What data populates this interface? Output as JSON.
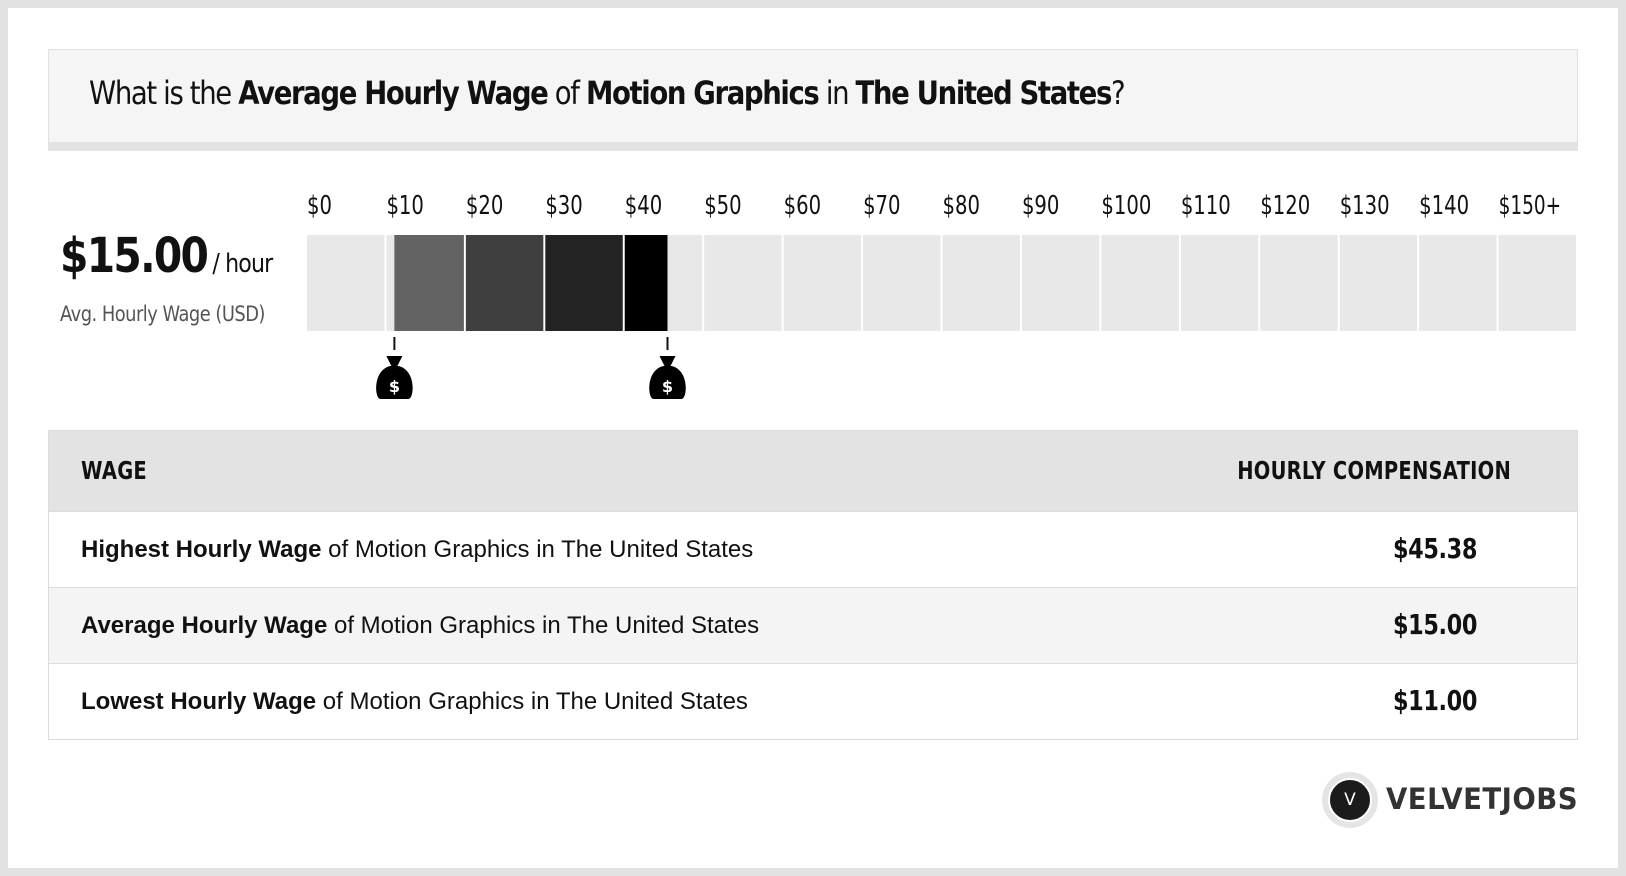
{
  "title": {
    "p1": "What is the ",
    "b1": "Average Hourly Wage",
    "p2": " of ",
    "b2": "Motion Graphics",
    "p3": " in ",
    "b3": "The United States",
    "p4": "?"
  },
  "summary": {
    "value": "$15.00",
    "unit": "/ hour",
    "label": "Avg. Hourly Wage (USD)"
  },
  "chart_data": {
    "type": "bar",
    "tick_labels": [
      "$0",
      "$10",
      "$20",
      "$30",
      "$40",
      "$50",
      "$60",
      "$70",
      "$80",
      "$90",
      "$100",
      "$110",
      "$120",
      "$130",
      "$140",
      "$150+"
    ],
    "xlim": [
      0,
      160
    ],
    "low": 11.0,
    "average": 15.0,
    "high": 45.38,
    "bucket_size": 10,
    "markers": [
      {
        "value": 11.0,
        "icon": "money-bag-icon",
        "glyph": "$"
      },
      {
        "value": 45.38,
        "icon": "money-bag-icon",
        "glyph": "$"
      }
    ],
    "empty_color": "#e8e8e8",
    "range_colors": [
      "#636363",
      "#3f3f3f",
      "#232323",
      "#000000"
    ]
  },
  "table": {
    "header_left": "WAGE",
    "header_right": "HOURLY COMPENSATION",
    "rows": [
      {
        "bold": "Highest Hourly Wage",
        "rest": " of Motion Graphics in The United States",
        "value": "$45.38"
      },
      {
        "bold": "Average Hourly Wage",
        "rest": " of Motion Graphics in The United States",
        "value": "$15.00"
      },
      {
        "bold": "Lowest Hourly Wage",
        "rest": " of Motion Graphics in The United States",
        "value": "$11.00"
      }
    ]
  },
  "logo": {
    "mark": "V",
    "text": "VELVETJOBS"
  }
}
